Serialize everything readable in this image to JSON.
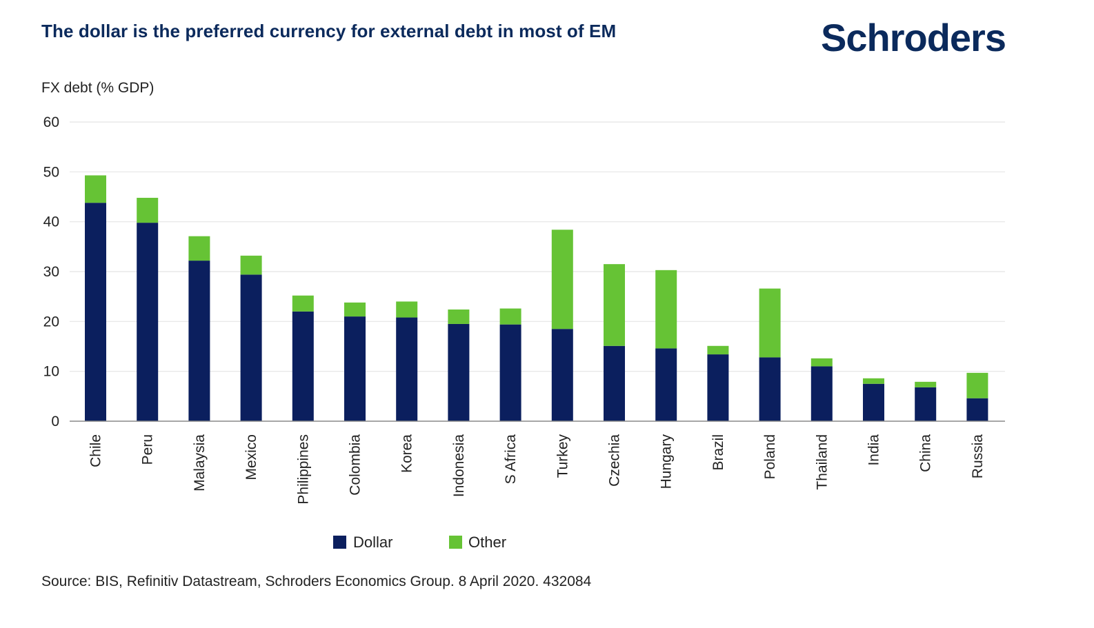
{
  "header": {
    "title": "The dollar is the preferred currency for external debt in most of EM",
    "logo_text": "Schroders"
  },
  "footer": {
    "source": "Source: BIS, Refinitiv Datastream, Schroders Economics Group. 8 April 2020. 432084"
  },
  "colors": {
    "dollar": "#0b1f5e",
    "other": "#66c335",
    "grid": "#e4e4e4",
    "axis": "#888888",
    "title": "#0b2a5c"
  },
  "chart_data": {
    "type": "bar",
    "stacked": true,
    "ylabel": "FX debt (% GDP)",
    "ylim": [
      0,
      60
    ],
    "yticks": [
      0,
      10,
      20,
      30,
      40,
      50,
      60
    ],
    "grid": true,
    "legend_position": "bottom",
    "categories": [
      "Chile",
      "Peru",
      "Malaysia",
      "Mexico",
      "Philippines",
      "Colombia",
      "Korea",
      "Indonesia",
      "S Africa",
      "Turkey",
      "Czechia",
      "Hungary",
      "Brazil",
      "Poland",
      "Thailand",
      "India",
      "China",
      "Russia"
    ],
    "series": [
      {
        "name": "Dollar",
        "values": [
          43.8,
          39.8,
          32.2,
          29.4,
          22.0,
          21.0,
          20.8,
          19.5,
          19.4,
          18.5,
          15.1,
          14.6,
          13.4,
          12.8,
          11.0,
          7.5,
          6.8,
          4.6
        ]
      },
      {
        "name": "Other",
        "values": [
          5.5,
          5.0,
          4.9,
          3.8,
          3.2,
          2.8,
          3.2,
          2.9,
          3.2,
          19.9,
          16.4,
          15.7,
          1.7,
          13.8,
          1.6,
          1.1,
          1.1,
          5.1
        ]
      }
    ]
  }
}
